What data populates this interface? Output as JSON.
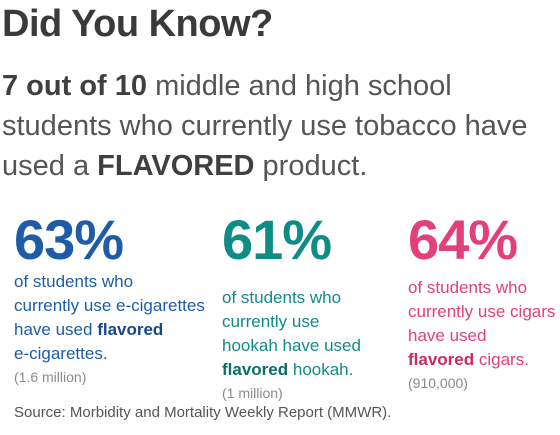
{
  "title": "Did You Know?",
  "headline": {
    "bold_lead": "7 out of 10",
    "text_1": " middle and high school students who currently use tobacco have used a ",
    "bold_word": "FLAVORED",
    "text_2": " product."
  },
  "stats": [
    {
      "percent": "63%",
      "line_1": "of students who",
      "line_2": "currently use e-cigarettes",
      "line_3_prefix": "have used ",
      "line_3_bold": "flavored",
      "line_4": "e-cigarettes.",
      "count": "(1.6 million)",
      "color": "#1f5ca8"
    },
    {
      "percent": "61%",
      "line_1": "of students who",
      "line_2": "currently use",
      "line_3": "hookah have used",
      "line_4_bold": "flavored",
      "line_4_suffix": " hookah.",
      "count": "(1 million)",
      "color": "#0f8c86"
    },
    {
      "percent": "64%",
      "line_1": "of students who",
      "line_2": "currently use cigars",
      "line_3": "have used",
      "line_4_bold": "flavored",
      "line_4_suffix": " cigars.",
      "count": "(910,000)",
      "color": "#e2407a"
    }
  ],
  "source": "Source: Morbidity and Mortality Weekly Report (MMWR)."
}
